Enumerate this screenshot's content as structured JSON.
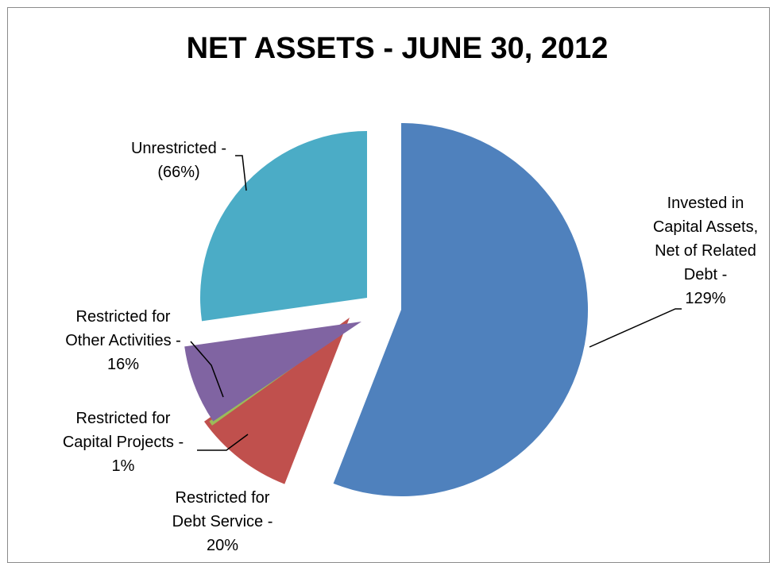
{
  "chart_data": {
    "type": "pie",
    "title": "NET ASSETS - JUNE 30, 2012",
    "slices": [
      {
        "name": "Invested in Capital Assets, Net of Related Debt",
        "label_lines": [
          "Invested in",
          "Capital Assets,",
          "Net of Related",
          "Debt -",
          "129%"
        ],
        "percent": 129,
        "share": 0.5592,
        "color": "#4f81bd"
      },
      {
        "name": "Restricted for Debt Service",
        "label_lines": [
          "Restricted for",
          "Debt Service -",
          "20%"
        ],
        "percent": 20,
        "share": 0.092,
        "color": "#c0504d"
      },
      {
        "name": "Restricted for Capital Projects",
        "label_lines": [
          "Restricted for",
          "Capital Projects -",
          "1%"
        ],
        "percent": 1,
        "share": 0.0045,
        "color": "#9bbb59"
      },
      {
        "name": "Restricted for Other Activities",
        "label_lines": [
          "Restricted for",
          "Other Activities -",
          "16%"
        ],
        "percent": 16,
        "share": 0.072,
        "color": "#8064a2"
      },
      {
        "name": "Unrestricted",
        "label_lines": [
          "Unrestricted -",
          "(66%)"
        ],
        "percent": -66,
        "share": 0.2723,
        "color": "#4bacc6"
      }
    ],
    "legend": "none"
  }
}
